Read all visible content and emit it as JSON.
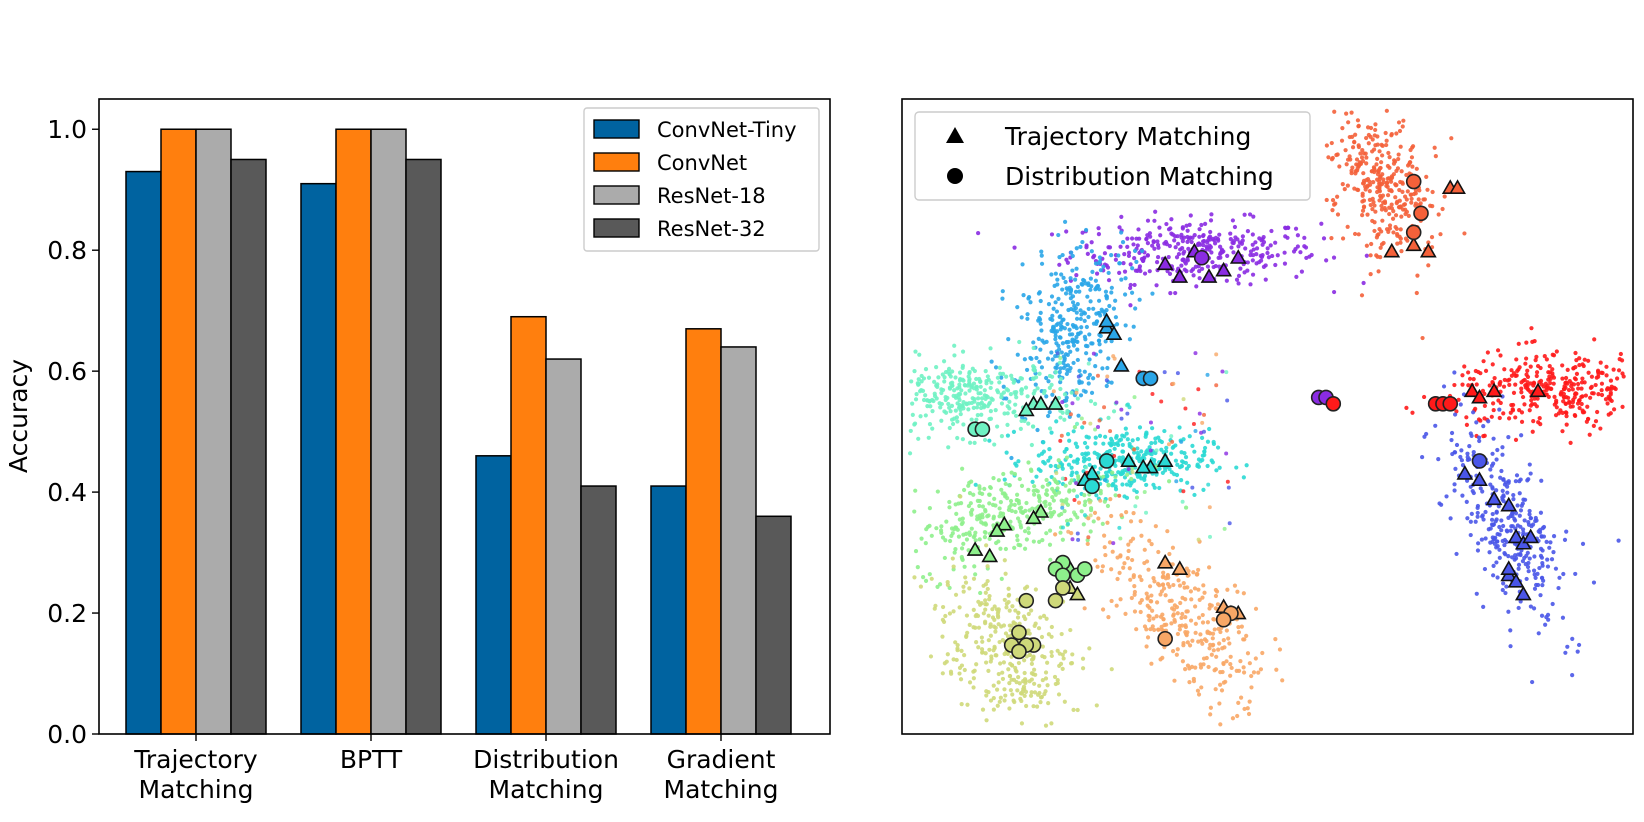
{
  "chart_data": [
    {
      "type": "bar",
      "categories": [
        [
          "Trajectory",
          "Matching"
        ],
        [
          "BPTT"
        ],
        [
          "Distribution",
          "Matching"
        ],
        [
          "Gradient",
          "Matching"
        ]
      ],
      "series": [
        {
          "name": "ConvNet-Tiny",
          "color": "#0063a0",
          "values": [
            0.93,
            0.91,
            0.46,
            0.41
          ]
        },
        {
          "name": "ConvNet",
          "color": "#ff7f0e",
          "values": [
            1.0,
            1.0,
            0.69,
            0.67
          ]
        },
        {
          "name": "ResNet-18",
          "color": "#ababab",
          "values": [
            1.0,
            1.0,
            0.62,
            0.64
          ]
        },
        {
          "name": "ResNet-32",
          "color": "#595959",
          "values": [
            0.95,
            0.95,
            0.41,
            0.36
          ]
        }
      ],
      "ylabel": "Accuracy",
      "ylim": [
        0,
        1.05
      ],
      "yticks": [
        "0.0",
        "0.2",
        "0.4",
        "0.6",
        "0.8",
        "1.0"
      ],
      "legend": "top-right"
    },
    {
      "type": "scatter",
      "title": "",
      "legend_entries": [
        {
          "marker": "triangle",
          "label": "Trajectory Matching"
        },
        {
          "marker": "circle",
          "label": "Distribution Matching"
        }
      ],
      "legend": "top-left",
      "xticks": [],
      "yticks": [],
      "clusters": [
        {
          "name": "violet",
          "color": "#8a2be2",
          "center": [
            0.4,
            0.76
          ],
          "spread": [
            0.085,
            0.025
          ],
          "angle": 0
        },
        {
          "name": "orange-red",
          "color": "#f4613a",
          "center": [
            0.66,
            0.86
          ],
          "spread": [
            0.035,
            0.06
          ],
          "angle": 0.3
        },
        {
          "name": "sky-blue",
          "color": "#2aa6e8",
          "center": [
            0.23,
            0.64
          ],
          "spread": [
            0.035,
            0.07
          ],
          "angle": -0.3
        },
        {
          "name": "aquamarine",
          "color": "#6ff2c3",
          "center": [
            0.1,
            0.53
          ],
          "spread": [
            0.07,
            0.03
          ],
          "angle": 0
        },
        {
          "name": "cyan",
          "color": "#2ad9d4",
          "center": [
            0.3,
            0.43
          ],
          "spread": [
            0.06,
            0.025
          ],
          "angle": 0
        },
        {
          "name": "light-green",
          "color": "#8ef08c",
          "center": [
            0.15,
            0.35
          ],
          "spread": [
            0.08,
            0.035
          ],
          "angle": 0.35
        },
        {
          "name": "khaki",
          "color": "#cfd97a",
          "center": [
            0.14,
            0.13
          ],
          "spread": [
            0.04,
            0.07
          ],
          "angle": 0.3
        },
        {
          "name": "sandy",
          "color": "#f8a766",
          "center": [
            0.38,
            0.19
          ],
          "spread": [
            0.035,
            0.09
          ],
          "angle": 0.6
        },
        {
          "name": "red",
          "color": "#ff1a1a",
          "center": [
            0.89,
            0.54
          ],
          "spread": [
            0.07,
            0.03
          ],
          "angle": 0
        },
        {
          "name": "blue",
          "color": "#4a56e8",
          "center": [
            0.83,
            0.33
          ],
          "spread": [
            0.03,
            0.09
          ],
          "angle": 0.4
        }
      ],
      "triangles": [
        [
          0.36,
          0.74
        ],
        [
          0.4,
          0.76
        ],
        [
          0.42,
          0.72
        ],
        [
          0.46,
          0.75
        ],
        [
          0.38,
          0.72
        ],
        [
          0.44,
          0.73
        ],
        [
          0.75,
          0.86
        ],
        [
          0.76,
          0.86
        ],
        [
          0.7,
          0.77
        ],
        [
          0.72,
          0.76
        ],
        [
          0.67,
          0.76
        ],
        [
          0.28,
          0.64
        ],
        [
          0.28,
          0.65
        ],
        [
          0.29,
          0.63
        ],
        [
          0.3,
          0.58
        ],
        [
          0.18,
          0.52
        ],
        [
          0.19,
          0.52
        ],
        [
          0.21,
          0.52
        ],
        [
          0.17,
          0.51
        ],
        [
          0.31,
          0.43
        ],
        [
          0.34,
          0.42
        ],
        [
          0.36,
          0.43
        ],
        [
          0.33,
          0.42
        ],
        [
          0.26,
          0.41
        ],
        [
          0.25,
          0.4
        ],
        [
          0.19,
          0.35
        ],
        [
          0.18,
          0.34
        ],
        [
          0.14,
          0.33
        ],
        [
          0.13,
          0.32
        ],
        [
          0.1,
          0.29
        ],
        [
          0.12,
          0.28
        ],
        [
          0.23,
          0.26
        ],
        [
          0.23,
          0.23
        ],
        [
          0.24,
          0.22
        ],
        [
          0.36,
          0.27
        ],
        [
          0.38,
          0.26
        ],
        [
          0.44,
          0.2
        ],
        [
          0.45,
          0.19
        ],
        [
          0.46,
          0.19
        ],
        [
          0.78,
          0.54
        ],
        [
          0.79,
          0.53
        ],
        [
          0.81,
          0.54
        ],
        [
          0.87,
          0.54
        ],
        [
          0.77,
          0.41
        ],
        [
          0.79,
          0.4
        ],
        [
          0.81,
          0.37
        ],
        [
          0.83,
          0.36
        ],
        [
          0.84,
          0.31
        ],
        [
          0.85,
          0.3
        ],
        [
          0.83,
          0.25
        ],
        [
          0.84,
          0.24
        ],
        [
          0.86,
          0.31
        ],
        [
          0.83,
          0.26
        ],
        [
          0.85,
          0.22
        ]
      ],
      "circles": [
        [
          0.7,
          0.87
        ],
        [
          0.71,
          0.82
        ],
        [
          0.7,
          0.79
        ],
        [
          0.41,
          0.75
        ],
        [
          0.33,
          0.56
        ],
        [
          0.34,
          0.56
        ],
        [
          0.1,
          0.48
        ],
        [
          0.11,
          0.48
        ],
        [
          0.57,
          0.53
        ],
        [
          0.58,
          0.53
        ],
        [
          0.59,
          0.52
        ],
        [
          0.73,
          0.52
        ],
        [
          0.74,
          0.52
        ],
        [
          0.75,
          0.52
        ],
        [
          0.28,
          0.43
        ],
        [
          0.26,
          0.39
        ],
        [
          0.79,
          0.43
        ],
        [
          0.22,
          0.27
        ],
        [
          0.21,
          0.26
        ],
        [
          0.22,
          0.25
        ],
        [
          0.24,
          0.25
        ],
        [
          0.25,
          0.26
        ],
        [
          0.22,
          0.23
        ],
        [
          0.21,
          0.21
        ],
        [
          0.17,
          0.21
        ],
        [
          0.16,
          0.16
        ],
        [
          0.18,
          0.14
        ],
        [
          0.17,
          0.14
        ],
        [
          0.15,
          0.14
        ],
        [
          0.16,
          0.13
        ],
        [
          0.45,
          0.19
        ],
        [
          0.44,
          0.18
        ],
        [
          0.36,
          0.15
        ]
      ]
    }
  ]
}
